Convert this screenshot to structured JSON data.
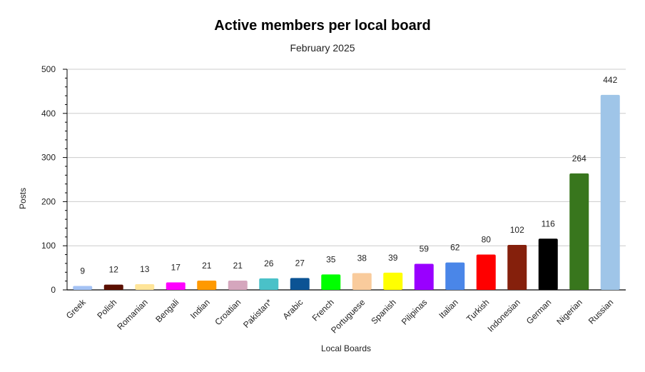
{
  "chart_data": {
    "type": "bar",
    "title": "Active members per local board",
    "subtitle": "February 2025",
    "xlabel": "Local Boards",
    "ylabel": "Posts",
    "ylim": [
      0,
      500
    ],
    "yticks": [
      0,
      100,
      200,
      300,
      400,
      500
    ],
    "grid": true,
    "legend": "none",
    "categories": [
      "Greek",
      "Polish",
      "Romanian",
      "Bengali",
      "Indian",
      "Croatian",
      "Pakistan*",
      "Arabic",
      "French",
      "Portuguese",
      "Spanish",
      "Pilipinas",
      "Italian",
      "Turkish",
      "Indonesian",
      "German",
      "Nigerian",
      "Russian"
    ],
    "values": [
      9,
      12,
      13,
      17,
      21,
      21,
      26,
      27,
      35,
      38,
      39,
      59,
      62,
      80,
      102,
      116,
      264,
      442
    ],
    "colors": [
      "#a4c2f4",
      "#5b0f00",
      "#ffe599",
      "#ff00ff",
      "#ff9900",
      "#d5a6bd",
      "#4ac1c8",
      "#0b5394",
      "#00ff00",
      "#f9cb9c",
      "#ffff00",
      "#9900ff",
      "#4a86e8",
      "#ff0000",
      "#85200c",
      "#000000",
      "#38761d",
      "#9fc5e8"
    ]
  }
}
